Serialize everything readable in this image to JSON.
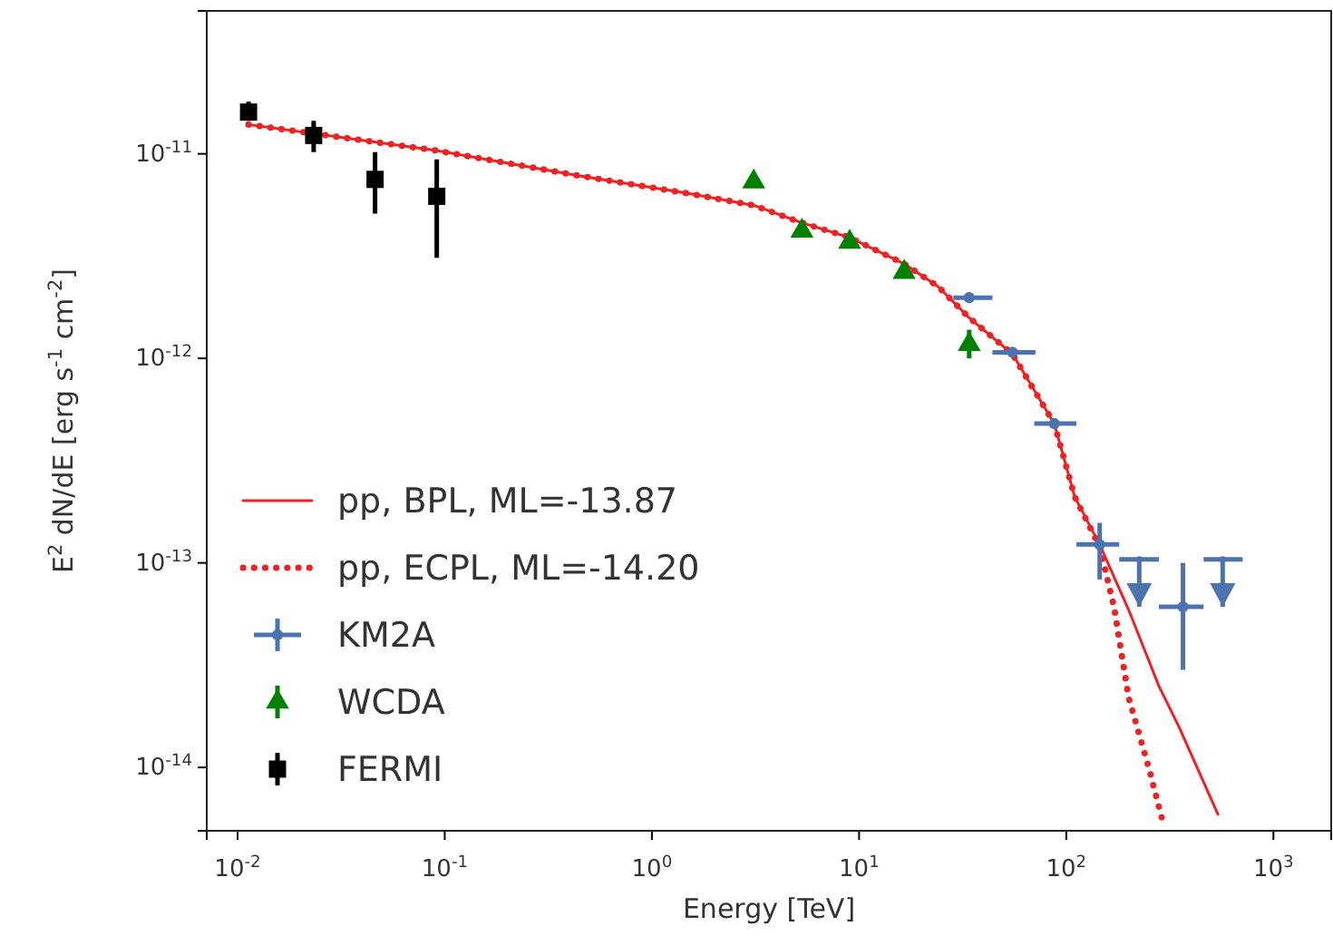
{
  "chart_data": {
    "type": "scatter",
    "xlabel": "Energy [TeV]",
    "ylabel": "E$^{2}$ dN/dE [erg s$^{-1}$ cm$^{-2}$]",
    "log": "xy",
    "xlim": [
      0.0071,
      1900
    ],
    "ylim": [
      4.9e-15,
      5e-11
    ],
    "xticks": [
      {
        "value": 0.01,
        "label": "10$^{-2}$"
      },
      {
        "value": 0.1,
        "label": "10$^{-1}$"
      },
      {
        "value": 1,
        "label": "10$^{0}$"
      },
      {
        "value": 10,
        "label": "10$^{1}$"
      },
      {
        "value": 100,
        "label": "10$^{2}$"
      },
      {
        "value": 1000,
        "label": "10$^{3}$"
      }
    ],
    "yticks": [
      {
        "value": 1e-14,
        "label": "10$^{-14}$"
      },
      {
        "value": 1e-13,
        "label": "10$^{-13}$"
      },
      {
        "value": 1e-12,
        "label": "10$^{-12}$"
      },
      {
        "value": 1e-11,
        "label": "10$^{-11}$"
      }
    ],
    "grid": false,
    "legend": "bottom left",
    "series": [
      {
        "name": "pp, BPL, ML=-13.87",
        "type": "line",
        "line_style": "solid",
        "color": "#ee2222",
        "x": [
          0.0113,
          0.09,
          0.45,
          1.5,
          3.1,
          5.3,
          9,
          16.5,
          24,
          34,
          55,
          87.5,
          110,
          145,
          200,
          280,
          350,
          540
        ],
        "values": [
          1.39e-11,
          1.04e-11,
          7.8e-12,
          6.4e-12,
          5.6e-12,
          4.6e-12,
          3.9e-12,
          2.9e-12,
          2.25e-12,
          1.58e-12,
          1.05e-12,
          4.8e-13,
          2.1e-13,
          1.23e-13,
          5.9e-14,
          2.5e-14,
          1.58e-14,
          5.9e-15
        ]
      },
      {
        "name": "pp, ECPL, ML=-14.20",
        "type": "line",
        "line_style": "dotted",
        "color": "#ee2222",
        "x": [
          0.0113,
          0.09,
          0.45,
          1.5,
          3.1,
          5.3,
          9,
          16.5,
          24,
          34,
          55,
          87.5,
          110,
          145,
          170,
          200,
          250,
          290
        ],
        "values": [
          1.39e-11,
          1.04e-11,
          7.8e-12,
          6.4e-12,
          5.6e-12,
          4.6e-12,
          3.9e-12,
          2.9e-12,
          2.25e-12,
          1.58e-12,
          1.05e-12,
          4.8e-13,
          2.1e-13,
          1.2e-13,
          6.1e-14,
          2.2e-14,
          1e-14,
          5.6e-15
        ]
      },
      {
        "name": "KM2A",
        "marker": "circle",
        "color": "#4c72b0",
        "x": [
          34,
          55,
          87.5,
          145,
          366
        ],
        "values": [
          1.98e-12,
          1.07e-12,
          4.8e-13,
          1.23e-13,
          6.1e-14
        ],
        "errors": [
          null,
          null,
          null,
          [
            8.3e-14,
            1.57e-13
          ],
          [
            3e-14,
            1e-13
          ]
        ],
        "xerrors": [
          [
            28.5,
            44
          ],
          [
            44,
            71
          ],
          [
            70,
            112
          ],
          [
            112,
            180
          ],
          [
            280,
            460
          ]
        ]
      },
      {
        "color": "#4c72b0",
        "x": [
          225,
          569
        ],
        "values": [
          1.04e-13,
          1.04e-13
        ],
        "errors": [
          [
            6.1e-14,
            1.04e-13
          ],
          [
            6.1e-14,
            1.04e-13
          ]
        ],
        "xerrors": [
          [
            180,
            280
          ],
          [
            460,
            710
          ]
        ]
      },
      {
        "name": "WCDA",
        "marker": "triangle",
        "color": "#008000",
        "x": [
          3.1,
          5.3,
          9,
          16.5,
          34
        ],
        "values": [
          7.3e-12,
          4.2e-12,
          3.7e-12,
          2.64e-12,
          1.17e-12
        ],
        "errors": [
          null,
          null,
          null,
          null,
          [
            1e-12,
            1.38e-12
          ]
        ]
      },
      {
        "name": "FERMI",
        "marker": "square",
        "color": "#000000",
        "x": [
          0.0113,
          0.0233,
          0.0461,
          0.0915
        ],
        "values": [
          1.6e-11,
          1.23e-11,
          7.5e-12,
          6.2e-12
        ],
        "errors": [
          [
            1.45e-11,
            1.8e-11
          ],
          [
            1.02e-11,
            1.45e-11
          ],
          [
            5.1e-12,
            1.02e-11
          ],
          [
            3.1e-12,
            9.4e-12
          ]
        ]
      }
    ]
  }
}
